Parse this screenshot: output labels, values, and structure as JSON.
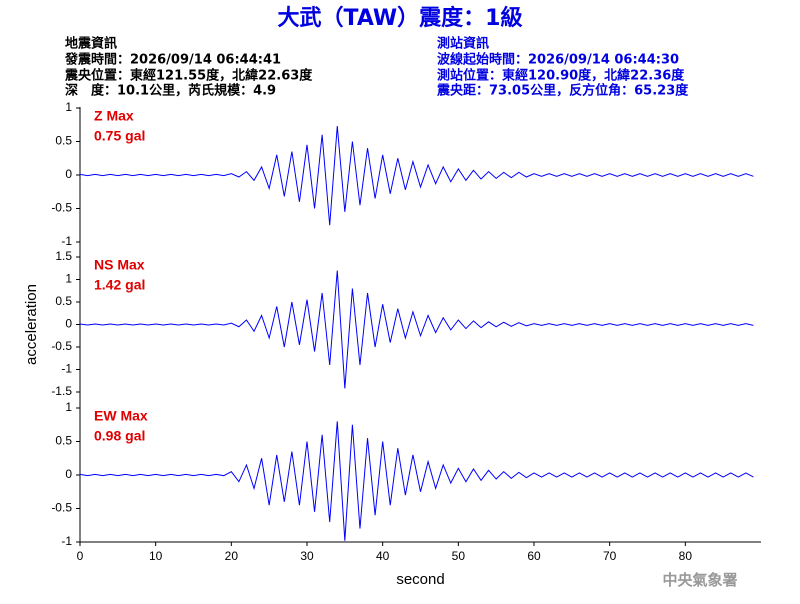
{
  "header": {
    "title": "大武（TAW）震度：1級",
    "quake_info": [
      "地震資訊",
      "發震時間：2026/09/14 06:44:41",
      "震央位置：東經121.55度，北緯22.63度",
      "深　度：10.1公里，芮氏規模：4.9"
    ],
    "station_info": [
      "測站資訊",
      "波線起始時間：2026/09/14 06:44:30",
      "測站位置：東經120.90度，北緯22.36度",
      "震央距：73.05公里，反方位角：65.23度"
    ],
    "watermark": "中央氣象署"
  },
  "chart_data": [
    {
      "type": "line",
      "annotation": [
        "Z Max",
        "0.75 gal"
      ],
      "x": [
        0,
        1,
        2,
        3,
        4,
        5,
        6,
        7,
        8,
        9,
        10,
        11,
        12,
        13,
        14,
        15,
        16,
        17,
        18,
        19,
        20,
        21,
        22,
        23,
        24,
        25,
        26,
        27,
        28,
        29,
        30,
        31,
        32,
        33,
        34,
        35,
        36,
        37,
        38,
        39,
        40,
        41,
        42,
        43,
        44,
        45,
        46,
        47,
        48,
        49,
        50,
        51,
        52,
        53,
        54,
        55,
        56,
        57,
        58,
        59,
        60,
        61,
        62,
        63,
        64,
        65,
        66,
        67,
        68,
        69,
        70,
        71,
        72,
        73,
        74,
        75,
        76,
        77,
        78,
        79,
        80,
        81,
        82,
        83,
        84,
        85,
        86,
        87,
        88,
        89
      ],
      "series": [
        {
          "color": "#0000ff",
          "values": [
            0.01,
            -0.01,
            0.01,
            -0.01,
            0.01,
            -0.01,
            0.01,
            -0.01,
            0.01,
            -0.01,
            0.01,
            -0.01,
            0.01,
            -0.01,
            0.01,
            -0.01,
            0.01,
            -0.01,
            0.01,
            -0.01,
            0.02,
            -0.03,
            0.05,
            -0.08,
            0.12,
            -0.2,
            0.3,
            -0.32,
            0.35,
            -0.4,
            0.45,
            -0.5,
            0.6,
            -0.75,
            0.73,
            -0.55,
            0.5,
            -0.45,
            0.4,
            -0.35,
            0.3,
            -0.28,
            0.25,
            -0.22,
            0.2,
            -0.18,
            0.15,
            -0.13,
            0.12,
            -0.1,
            0.09,
            -0.08,
            0.07,
            -0.06,
            0.05,
            -0.05,
            0.04,
            -0.04,
            0.04,
            -0.03,
            0.02,
            -0.02,
            0.02,
            -0.02,
            0.02,
            -0.02,
            0.02,
            -0.02,
            0.02,
            -0.02,
            0.02,
            -0.02,
            0.02,
            -0.02,
            0.02,
            -0.02,
            0.02,
            -0.02,
            0.02,
            -0.02,
            0.02,
            -0.02,
            0.02,
            -0.02,
            0.02,
            -0.02,
            0.02,
            -0.02,
            0.02,
            -0.02
          ]
        }
      ],
      "xlim": [
        0,
        90
      ],
      "ylim": [
        -1,
        1
      ],
      "yticks": [
        -1,
        -0.5,
        0,
        0.5,
        1
      ]
    },
    {
      "type": "line",
      "annotation": [
        "NS Max",
        "1.42 gal"
      ],
      "ylabel": "acceleration",
      "x": [
        0,
        1,
        2,
        3,
        4,
        5,
        6,
        7,
        8,
        9,
        10,
        11,
        12,
        13,
        14,
        15,
        16,
        17,
        18,
        19,
        20,
        21,
        22,
        23,
        24,
        25,
        26,
        27,
        28,
        29,
        30,
        31,
        32,
        33,
        34,
        35,
        36,
        37,
        38,
        39,
        40,
        41,
        42,
        43,
        44,
        45,
        46,
        47,
        48,
        49,
        50,
        51,
        52,
        53,
        54,
        55,
        56,
        57,
        58,
        59,
        60,
        61,
        62,
        63,
        64,
        65,
        66,
        67,
        68,
        69,
        70,
        71,
        72,
        73,
        74,
        75,
        76,
        77,
        78,
        79,
        80,
        81,
        82,
        83,
        84,
        85,
        86,
        87,
        88,
        89
      ],
      "series": [
        {
          "color": "#0000ff",
          "values": [
            0.01,
            -0.01,
            0.01,
            -0.01,
            0.01,
            -0.01,
            0.01,
            -0.01,
            0.01,
            -0.01,
            0.01,
            -0.01,
            0.01,
            -0.01,
            0.01,
            -0.01,
            0.01,
            -0.01,
            0.01,
            -0.01,
            0.03,
            -0.05,
            0.1,
            -0.15,
            0.2,
            -0.3,
            0.4,
            -0.5,
            0.5,
            -0.45,
            0.55,
            -0.6,
            0.7,
            -0.9,
            1.2,
            -1.42,
            0.8,
            -0.9,
            0.7,
            -0.5,
            0.45,
            -0.4,
            0.35,
            -0.3,
            0.28,
            -0.25,
            0.2,
            -0.18,
            0.15,
            -0.12,
            0.1,
            -0.09,
            0.08,
            -0.07,
            0.06,
            -0.05,
            0.05,
            -0.04,
            0.04,
            -0.03,
            0.02,
            -0.02,
            0.02,
            -0.02,
            0.02,
            -0.02,
            0.02,
            -0.02,
            0.02,
            -0.02,
            0.02,
            -0.02,
            0.02,
            -0.02,
            0.02,
            -0.02,
            0.02,
            -0.02,
            0.02,
            -0.02,
            0.02,
            -0.02,
            0.02,
            -0.02,
            0.02,
            -0.02,
            0.02,
            -0.02,
            0.02,
            -0.02
          ]
        }
      ],
      "xlim": [
        0,
        90
      ],
      "ylim": [
        -1.5,
        1.5
      ],
      "yticks": [
        -1.5,
        -1,
        -0.5,
        0,
        0.5,
        1,
        1.5
      ]
    },
    {
      "type": "line",
      "annotation": [
        "EW Max",
        "0.98 gal"
      ],
      "xlabel": "second",
      "x": [
        0,
        1,
        2,
        3,
        4,
        5,
        6,
        7,
        8,
        9,
        10,
        11,
        12,
        13,
        14,
        15,
        16,
        17,
        18,
        19,
        20,
        21,
        22,
        23,
        24,
        25,
        26,
        27,
        28,
        29,
        30,
        31,
        32,
        33,
        34,
        35,
        36,
        37,
        38,
        39,
        40,
        41,
        42,
        43,
        44,
        45,
        46,
        47,
        48,
        49,
        50,
        51,
        52,
        53,
        54,
        55,
        56,
        57,
        58,
        59,
        60,
        61,
        62,
        63,
        64,
        65,
        66,
        67,
        68,
        69,
        70,
        71,
        72,
        73,
        74,
        75,
        76,
        77,
        78,
        79,
        80,
        81,
        82,
        83,
        84,
        85,
        86,
        87,
        88,
        89
      ],
      "series": [
        {
          "color": "#0000ff",
          "values": [
            0.01,
            -0.01,
            0.01,
            -0.01,
            0.01,
            -0.01,
            0.01,
            -0.01,
            0.01,
            -0.01,
            0.01,
            -0.01,
            0.01,
            -0.01,
            0.01,
            -0.01,
            0.01,
            -0.01,
            0.01,
            -0.01,
            0.05,
            -0.1,
            0.15,
            -0.2,
            0.25,
            -0.45,
            0.3,
            -0.4,
            0.35,
            -0.45,
            0.5,
            -0.55,
            0.6,
            -0.7,
            0.8,
            -0.98,
            0.75,
            -0.8,
            0.55,
            -0.6,
            0.5,
            -0.45,
            0.4,
            -0.3,
            0.3,
            -0.25,
            0.2,
            -0.2,
            0.15,
            -0.12,
            0.1,
            -0.1,
            0.09,
            -0.08,
            0.07,
            -0.06,
            0.05,
            -0.05,
            0.04,
            -0.04,
            0.03,
            -0.03,
            0.03,
            -0.03,
            0.03,
            -0.03,
            0.03,
            -0.03,
            0.03,
            -0.03,
            0.03,
            -0.03,
            0.03,
            -0.03,
            0.03,
            -0.03,
            0.03,
            -0.03,
            0.03,
            -0.03,
            0.03,
            -0.03,
            0.03,
            -0.03,
            0.03,
            -0.03,
            0.03,
            -0.03,
            0.03,
            -0.03
          ]
        }
      ],
      "xlim": [
        0,
        90
      ],
      "ylim": [
        -1,
        1
      ],
      "yticks": [
        -1,
        -0.5,
        0,
        0.5,
        1
      ],
      "xticks": [
        0,
        10,
        20,
        30,
        40,
        50,
        60,
        70,
        80
      ]
    }
  ]
}
